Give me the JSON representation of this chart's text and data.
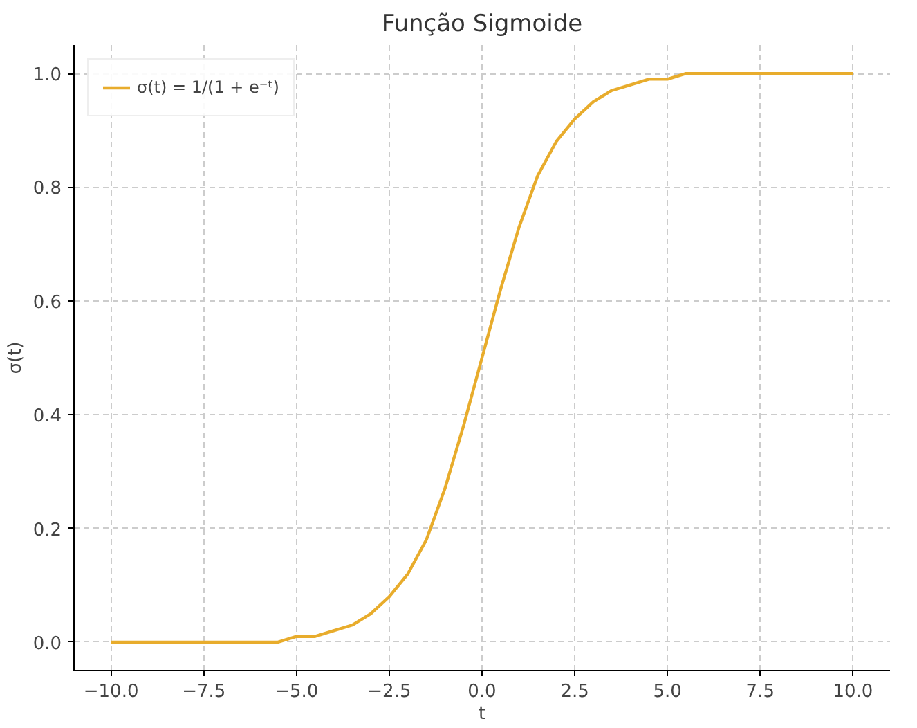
{
  "chart_data": {
    "type": "line",
    "title": "Função Sigmoide",
    "xlabel": "t",
    "ylabel": "σ(t)",
    "x": [
      -10,
      -9,
      -8,
      -7,
      -6,
      -5.5,
      -5,
      -4.5,
      -4,
      -3.5,
      -3,
      -2.5,
      -2,
      -1.5,
      -1,
      -0.5,
      0,
      0.5,
      1,
      1.5,
      2,
      2.5,
      3,
      3.5,
      4,
      4.5,
      5,
      5.5,
      6,
      7,
      8,
      9,
      10
    ],
    "series": [
      {
        "name": "σ(t) = 1/(1 + e⁻ᵗ)",
        "color": "#e8ac2c",
        "values": [
          0,
          0,
          0,
          0,
          0,
          0,
          0.01,
          0.01,
          0.02,
          0.03,
          0.05,
          0.08,
          0.12,
          0.18,
          0.27,
          0.38,
          0.5,
          0.62,
          0.73,
          0.82,
          0.88,
          0.92,
          0.95,
          0.97,
          0.98,
          0.99,
          0.99,
          1,
          1,
          1,
          1,
          1,
          1
        ]
      }
    ],
    "xlim": [
      -11,
      11
    ],
    "ylim": [
      -0.05,
      1.05
    ],
    "xticks": [
      {
        "value": -10,
        "label": "−10.0"
      },
      {
        "value": -7.5,
        "label": "−7.5"
      },
      {
        "value": -5,
        "label": "−5.0"
      },
      {
        "value": -2.5,
        "label": "−2.5"
      },
      {
        "value": 0,
        "label": "0.0"
      },
      {
        "value": 2.5,
        "label": "2.5"
      },
      {
        "value": 5,
        "label": "5.0"
      },
      {
        "value": 7.5,
        "label": "7.5"
      },
      {
        "value": 10,
        "label": "10.0"
      }
    ],
    "yticks": [
      {
        "value": 0,
        "label": "0.0"
      },
      {
        "value": 0.2,
        "label": "0.2"
      },
      {
        "value": 0.4,
        "label": "0.4"
      },
      {
        "value": 0.6,
        "label": "0.6"
      },
      {
        "value": 0.8,
        "label": "0.8"
      },
      {
        "value": 1,
        "label": "1.0"
      }
    ],
    "grid": true,
    "legend": "top left",
    "line_style": "solid"
  }
}
